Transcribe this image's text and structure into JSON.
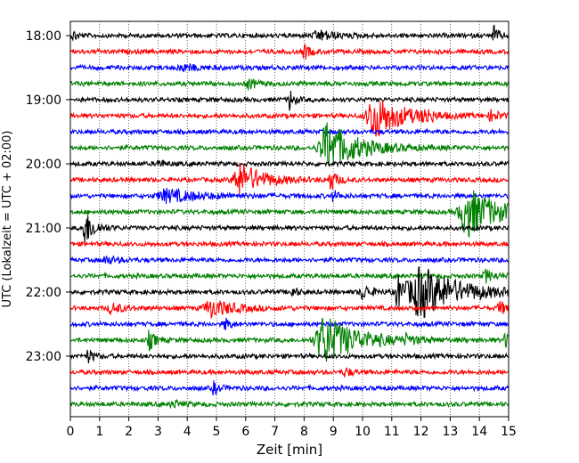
{
  "chart_data": {
    "type": "line",
    "title": "",
    "xlabel": "Zeit  [min]",
    "ylabel": "UTC (Lokalzeit = UTC + 02:00)",
    "xlim": [
      0,
      15
    ],
    "x_ticks": [
      "0",
      "1",
      "2",
      "3",
      "4",
      "5",
      "6",
      "7",
      "8",
      "9",
      "10",
      "11",
      "12",
      "13",
      "14",
      "15"
    ],
    "y_ticks": [
      {
        "label": "18:00",
        "trace": 0
      },
      {
        "label": "19:00",
        "trace": 4
      },
      {
        "label": "20:00",
        "trace": 8
      },
      {
        "label": "21:00",
        "trace": 12
      },
      {
        "label": "22:00",
        "trace": 16
      },
      {
        "label": "23:00",
        "trace": 20
      }
    ],
    "grid": "vertical-dotted",
    "trace_minutes": 15,
    "traces": [
      {
        "start": "18:00",
        "color": "#000000",
        "events": [
          {
            "t": 8.5,
            "a": 0.4,
            "d": 0.6
          },
          {
            "t": 14.5,
            "a": 0.8,
            "d": 0.15
          },
          {
            "t": 0.1,
            "a": 0.4,
            "d": 0.15
          }
        ]
      },
      {
        "start": "18:15",
        "color": "#ff0000",
        "events": [
          {
            "t": 8.0,
            "a": 0.6,
            "d": 0.2
          }
        ]
      },
      {
        "start": "18:30",
        "color": "#0000ff",
        "events": [
          {
            "t": 3.8,
            "a": 0.3,
            "d": 0.5
          }
        ]
      },
      {
        "start": "18:45",
        "color": "#008000",
        "events": [
          {
            "t": 6.1,
            "a": 0.4,
            "d": 0.3
          }
        ]
      },
      {
        "start": "19:00",
        "color": "#000000",
        "events": [
          {
            "t": 7.5,
            "a": 0.9,
            "d": 0.15
          }
        ]
      },
      {
        "start": "19:15",
        "color": "#ff0000",
        "events": [
          {
            "t": 10.4,
            "a": 1.8,
            "d": 0.9
          },
          {
            "t": 12.1,
            "a": 0.6,
            "d": 0.2
          },
          {
            "t": 14.4,
            "a": 0.4,
            "d": 0.3
          }
        ]
      },
      {
        "start": "19:30",
        "color": "#0000ff",
        "events": []
      },
      {
        "start": "19:45",
        "color": "#008000",
        "events": [
          {
            "t": 8.8,
            "a": 2.0,
            "d": 1.0
          }
        ]
      },
      {
        "start": "20:00",
        "color": "#000000",
        "events": [
          {
            "t": 3.0,
            "a": 0.3,
            "d": 0.2
          }
        ]
      },
      {
        "start": "20:15",
        "color": "#ff0000",
        "events": [
          {
            "t": 5.8,
            "a": 1.3,
            "d": 0.8
          },
          {
            "t": 8.9,
            "a": 0.9,
            "d": 0.2
          }
        ]
      },
      {
        "start": "20:30",
        "color": "#0000ff",
        "events": [
          {
            "t": 3.3,
            "a": 0.5,
            "d": 1.2
          },
          {
            "t": 9.0,
            "a": 0.4,
            "d": 0.2
          }
        ]
      },
      {
        "start": "20:45",
        "color": "#008000",
        "events": [
          {
            "t": 13.6,
            "a": 2.0,
            "d": 1.0
          }
        ]
      },
      {
        "start": "21:00",
        "color": "#000000",
        "events": [
          {
            "t": 0.5,
            "a": 1.4,
            "d": 0.3
          }
        ]
      },
      {
        "start": "21:15",
        "color": "#ff0000",
        "events": []
      },
      {
        "start": "21:30",
        "color": "#0000ff",
        "events": [
          {
            "t": 1.2,
            "a": 0.3,
            "d": 0.4
          }
        ]
      },
      {
        "start": "21:45",
        "color": "#008000",
        "events": [
          {
            "t": 14.2,
            "a": 0.5,
            "d": 0.3
          }
        ]
      },
      {
        "start": "22:00",
        "color": "#000000",
        "events": [
          {
            "t": 12.0,
            "a": 2.0,
            "d": 1.3
          },
          {
            "t": 11.2,
            "a": 1.4,
            "d": 0.3
          },
          {
            "t": 10.0,
            "a": 0.6,
            "d": 0.3
          },
          {
            "t": 7.6,
            "a": 0.5,
            "d": 0.15
          }
        ]
      },
      {
        "start": "22:15",
        "color": "#ff0000",
        "events": [
          {
            "t": 4.8,
            "a": 0.7,
            "d": 0.8
          },
          {
            "t": 1.4,
            "a": 0.4,
            "d": 0.4
          },
          {
            "t": 14.7,
            "a": 0.5,
            "d": 0.3
          }
        ]
      },
      {
        "start": "22:30",
        "color": "#0000ff",
        "events": [
          {
            "t": 5.3,
            "a": 0.6,
            "d": 0.15
          }
        ]
      },
      {
        "start": "22:45",
        "color": "#008000",
        "events": [
          {
            "t": 8.7,
            "a": 2.0,
            "d": 1.1
          },
          {
            "t": 2.7,
            "a": 0.8,
            "d": 0.2
          },
          {
            "t": 14.9,
            "a": 0.7,
            "d": 0.2
          },
          {
            "t": 11.5,
            "a": 0.3,
            "d": 0.3
          }
        ]
      },
      {
        "start": "23:00",
        "color": "#000000",
        "events": [
          {
            "t": 0.6,
            "a": 0.5,
            "d": 0.2
          }
        ]
      },
      {
        "start": "23:15",
        "color": "#ff0000",
        "events": [
          {
            "t": 9.4,
            "a": 0.4,
            "d": 0.2
          }
        ]
      },
      {
        "start": "23:30",
        "color": "#0000ff",
        "events": [
          {
            "t": 4.9,
            "a": 0.5,
            "d": 0.2
          }
        ]
      },
      {
        "start": "23:45",
        "color": "#008000",
        "events": [
          {
            "t": 3.5,
            "a": 0.3,
            "d": 0.3
          }
        ]
      }
    ]
  }
}
